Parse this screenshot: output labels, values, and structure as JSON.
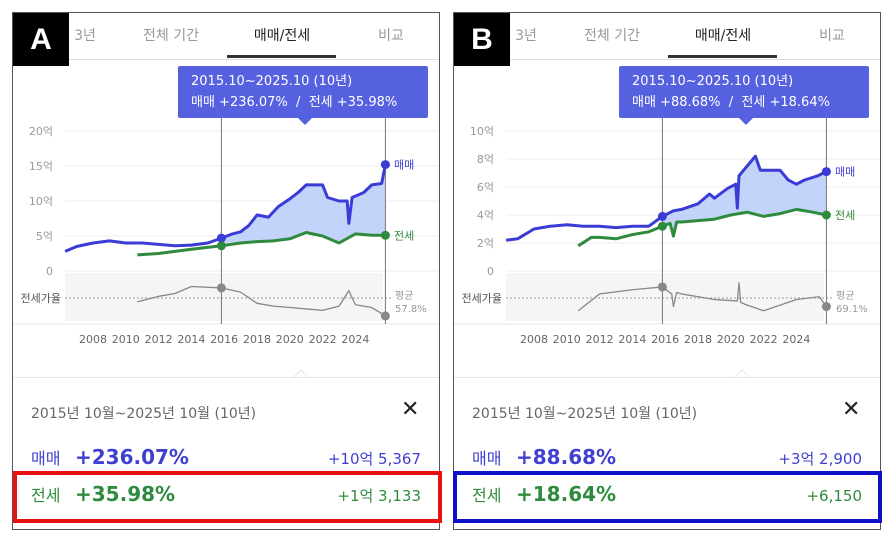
{
  "panels": [
    {
      "tag": "A",
      "tabs": [
        "3년",
        "전체 기간",
        "매매/전세",
        "비교"
      ],
      "active_tab": 2,
      "tooltip": {
        "period": "2015.10~2025.10 (10년)",
        "line": "매매 +236.07%  /  전세 +35.98%"
      },
      "summary": {
        "period": "2015년 10월~2025년 10월 (10년)",
        "close": "✕",
        "sale": {
          "label": "매매",
          "pct": "+236.07%",
          "amount": "+10억 5,367"
        },
        "jeonse": {
          "label": "전세",
          "pct": "+35.98%",
          "amount": "+1억 3,133"
        }
      },
      "highlight_color": "#e81010"
    },
    {
      "tag": "B",
      "tabs": [
        "3년",
        "전체 기간",
        "매매/전세",
        "비교"
      ],
      "active_tab": 2,
      "tooltip": {
        "period": "2015.10~2025.10 (10년)",
        "line": "매매 +88.68%  /  전세 +18.64%"
      },
      "summary": {
        "period": "2015년 10월~2025년 10월 (10년)",
        "close": "✕",
        "sale": {
          "label": "매매",
          "pct": "+88.68%",
          "amount": "+3억 2,900"
        },
        "jeonse": {
          "label": "전세",
          "pct": "+18.64%",
          "amount": "+6,150"
        }
      },
      "highlight_color": "#1010c8"
    }
  ],
  "colors": {
    "sale": "#3b3bd6",
    "jeonse": "#2e8b3e",
    "fill": "#b9cdfa",
    "rate": "#888888"
  },
  "chart_data": [
    {
      "type": "line",
      "panel": "A",
      "yticks": [
        "20억",
        "15억",
        "10억",
        "5억",
        "0"
      ],
      "ytick_values": [
        20,
        15,
        10,
        5,
        0
      ],
      "ylim": [
        0,
        20
      ],
      "xticks": [
        "2008",
        "2010",
        "2012",
        "2014",
        "2016",
        "2018",
        "2020",
        "2022",
        "2024"
      ],
      "range": [
        2015.83,
        2025.83
      ],
      "rate_label": "전세가율",
      "rate_avg_label": "평균",
      "rate_avg": "57.8%",
      "rate_avg_value": 57.8,
      "series": [
        {
          "name": "매매",
          "points": [
            [
              2006.3,
              2.8
            ],
            [
              2007,
              3.5
            ],
            [
              2008,
              4.0
            ],
            [
              2009,
              4.3
            ],
            [
              2010,
              4.0
            ],
            [
              2011,
              4.0
            ],
            [
              2012,
              3.8
            ],
            [
              2013,
              3.6
            ],
            [
              2014,
              3.7
            ],
            [
              2015,
              4.0
            ],
            [
              2015.83,
              4.7
            ],
            [
              2016.5,
              5.3
            ],
            [
              2017,
              5.6
            ],
            [
              2017.5,
              6.5
            ],
            [
              2018,
              8.0
            ],
            [
              2018.7,
              7.7
            ],
            [
              2019.3,
              9.2
            ],
            [
              2020,
              10.3
            ],
            [
              2020.5,
              11.2
            ],
            [
              2021,
              12.3
            ],
            [
              2022,
              12.3
            ],
            [
              2022.3,
              10.5
            ],
            [
              2023,
              10.0
            ],
            [
              2023.5,
              10.0
            ],
            [
              2023.6,
              6.8
            ],
            [
              2023.8,
              10.5
            ],
            [
              2024.5,
              11.2
            ],
            [
              2025,
              12.3
            ],
            [
              2025.6,
              12.5
            ],
            [
              2025.83,
              15.2
            ]
          ]
        },
        {
          "name": "전세",
          "points": [
            [
              2010.7,
              2.3
            ],
            [
              2012,
              2.5
            ],
            [
              2014,
              3.1
            ],
            [
              2015.83,
              3.6
            ],
            [
              2017,
              4.0
            ],
            [
              2018,
              4.2
            ],
            [
              2019,
              4.3
            ],
            [
              2020,
              4.6
            ],
            [
              2021,
              5.5
            ],
            [
              2022,
              5.0
            ],
            [
              2023,
              4.0
            ],
            [
              2024,
              5.3
            ],
            [
              2025,
              5.1
            ],
            [
              2025.83,
              5.1
            ]
          ]
        },
        {
          "name": "전세가율",
          "points": [
            [
              2010.7,
              55
            ],
            [
              2012,
              59
            ],
            [
              2013,
              61
            ],
            [
              2014,
              66
            ],
            [
              2015.83,
              65
            ],
            [
              2017,
              62
            ],
            [
              2018,
              54
            ],
            [
              2019,
              52
            ],
            [
              2020,
              51
            ],
            [
              2021,
              50
            ],
            [
              2022,
              49
            ],
            [
              2023,
              52
            ],
            [
              2023.6,
              63
            ],
            [
              2024,
              53
            ],
            [
              2025,
              51
            ],
            [
              2025.83,
              45
            ]
          ]
        }
      ]
    },
    {
      "type": "line",
      "panel": "B",
      "yticks": [
        "10억",
        "8억",
        "6억",
        "4억",
        "2억",
        "0"
      ],
      "ytick_values": [
        10,
        8,
        6,
        4,
        2,
        0
      ],
      "ylim": [
        0,
        10
      ],
      "xticks": [
        "2008",
        "2010",
        "2012",
        "2014",
        "2016",
        "2018",
        "2020",
        "2022",
        "2024"
      ],
      "range": [
        2015.83,
        2025.83
      ],
      "rate_label": "전세가율",
      "rate_avg_label": "평균",
      "rate_avg": "69.1%",
      "rate_avg_value": 69.1,
      "series": [
        {
          "name": "매매",
          "points": [
            [
              2006.3,
              2.2
            ],
            [
              2007,
              2.3
            ],
            [
              2008,
              3.0
            ],
            [
              2009,
              3.2
            ],
            [
              2010,
              3.3
            ],
            [
              2011,
              3.2
            ],
            [
              2012,
              3.2
            ],
            [
              2013,
              3.1
            ],
            [
              2014,
              3.2
            ],
            [
              2015,
              3.2
            ],
            [
              2015.83,
              3.9
            ],
            [
              2016.5,
              4.3
            ],
            [
              2017,
              4.4
            ],
            [
              2018,
              4.8
            ],
            [
              2018.7,
              5.5
            ],
            [
              2019,
              5.2
            ],
            [
              2019.8,
              5.9
            ],
            [
              2020.3,
              6.2
            ],
            [
              2020.4,
              4.5
            ],
            [
              2020.5,
              6.8
            ],
            [
              2021,
              7.5
            ],
            [
              2021.5,
              8.2
            ],
            [
              2021.8,
              7.2
            ],
            [
              2023,
              7.2
            ],
            [
              2023.5,
              6.5
            ],
            [
              2024,
              6.2
            ],
            [
              2024.5,
              6.5
            ],
            [
              2025.3,
              6.8
            ],
            [
              2025.83,
              7.1
            ]
          ]
        },
        {
          "name": "전세",
          "points": [
            [
              2010.7,
              1.8
            ],
            [
              2011.5,
              2.4
            ],
            [
              2012,
              2.4
            ],
            [
              2013,
              2.3
            ],
            [
              2014,
              2.6
            ],
            [
              2015,
              2.8
            ],
            [
              2015.83,
              3.2
            ],
            [
              2016.3,
              3.4
            ],
            [
              2016.5,
              2.5
            ],
            [
              2016.7,
              3.5
            ],
            [
              2017,
              3.5
            ],
            [
              2018,
              3.6
            ],
            [
              2019,
              3.7
            ],
            [
              2020,
              4.0
            ],
            [
              2021,
              4.2
            ],
            [
              2022,
              3.9
            ],
            [
              2023,
              4.1
            ],
            [
              2024,
              4.4
            ],
            [
              2025,
              4.2
            ],
            [
              2025.83,
              4.0
            ]
          ]
        },
        {
          "name": "전세가율",
          "points": [
            [
              2010.7,
              60
            ],
            [
              2012,
              72
            ],
            [
              2014,
              75
            ],
            [
              2015.83,
              77
            ],
            [
              2016.4,
              72
            ],
            [
              2016.5,
              63
            ],
            [
              2016.7,
              73
            ],
            [
              2017,
              72
            ],
            [
              2019,
              68
            ],
            [
              2020.4,
              67
            ],
            [
              2020.5,
              80
            ],
            [
              2020.6,
              66
            ],
            [
              2021,
              64
            ],
            [
              2022,
              60
            ],
            [
              2024,
              68
            ],
            [
              2025.4,
              70
            ],
            [
              2025.83,
              63
            ]
          ]
        }
      ]
    }
  ]
}
